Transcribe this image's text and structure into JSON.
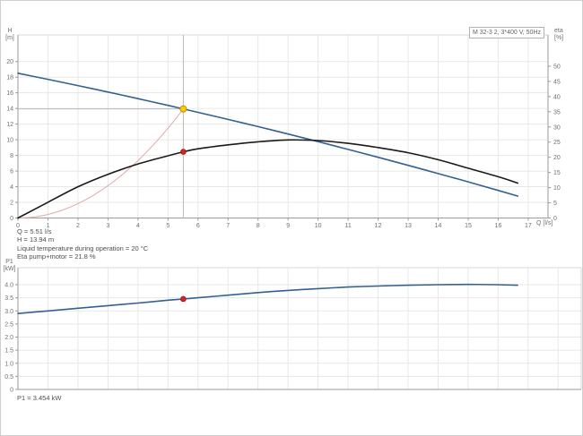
{
  "model_box": {
    "label": "M 32-3 2, 3*400 V, 50Hz"
  },
  "axis_labels": {
    "h": "H\n[m]",
    "eta": "eta\n[%]",
    "q": "Q [l/s]",
    "p1": "P1\n[kW]"
  },
  "info_panel": {
    "lines": [
      "Q = 5.51 l/s",
      "H = 13.94 m",
      "Liquid temperature during operation = 20 °C",
      "Eta pump+motor = 21.8 %"
    ]
  },
  "result_panel": {
    "p1_line": "P1 = 3.454 kW"
  },
  "colors": {
    "pump_curve": "#336190",
    "eta_curve": "#1a1a1a",
    "system_curve": "#e0aaa6",
    "p1_curve": "#336190",
    "duty_point_fill": "#ffcc00",
    "duty_point_stroke": "#cc8800",
    "value_point_fill": "#d42626",
    "value_point_stroke": "#a81818",
    "grid": "#e7e7e7",
    "axis": "#9a9a9a",
    "border": "#d9d9d9",
    "guide": "#b9b9b9",
    "tick_text": "#707070"
  },
  "chart_data": [
    {
      "type": "line",
      "title": "Pump curve, efficiency curve and system curve",
      "xlabel": "Q [l/s]",
      "ylabel_left": "H [m]",
      "ylabel_right": "eta [%]",
      "xlim": [
        0,
        17.66
      ],
      "ylim_left": [
        0,
        23.4
      ],
      "ylim_right": [
        0,
        60.3
      ],
      "x_ticks": [
        0,
        1,
        2,
        3,
        4,
        5,
        6,
        7,
        8,
        9,
        10,
        11,
        12,
        13,
        14,
        15,
        16,
        17
      ],
      "x_tick_labels": [
        "0",
        "1",
        "2",
        "3",
        "4",
        "5",
        "6",
        "7",
        "8",
        "9",
        "10",
        "11",
        "12",
        "13",
        "14",
        "15",
        "16",
        "17"
      ],
      "y_ticks_left": [
        0,
        2,
        4,
        6,
        8,
        10,
        12,
        14,
        16,
        18,
        20
      ],
      "y_tick_labels_left": [
        "0",
        "2",
        "4",
        "6",
        "8",
        "10",
        "12",
        "14",
        "16",
        "18",
        "20"
      ],
      "y_ticks_right": [
        0,
        5,
        10,
        15,
        20,
        25,
        30,
        35,
        40,
        45,
        50
      ],
      "y_tick_labels_right": [
        "0",
        "5",
        "10",
        "15",
        "20",
        "25",
        "30",
        "35",
        "40",
        "45",
        "50"
      ],
      "grid": true,
      "series": [
        {
          "name": "system-curve",
          "axis": "left",
          "color": "#e0aaa6",
          "width": 1,
          "points": [
            [
              0,
              0
            ],
            [
              0.5,
              0.11
            ],
            [
              1,
              0.46
            ],
            [
              1.5,
              1.03
            ],
            [
              2,
              1.84
            ],
            [
              2.5,
              2.87
            ],
            [
              3,
              4.13
            ],
            [
              3.5,
              5.62
            ],
            [
              4,
              7.34
            ],
            [
              4.5,
              9.3
            ],
            [
              5,
              11.48
            ],
            [
              5.51,
              13.94
            ]
          ]
        },
        {
          "name": "pump-curve",
          "axis": "left",
          "color": "#336190",
          "width": 1.6,
          "points": [
            [
              0,
              18.5
            ],
            [
              1,
              17.72
            ],
            [
              2,
              16.92
            ],
            [
              3,
              16.1
            ],
            [
              4,
              15.25
            ],
            [
              5,
              14.39
            ],
            [
              5.51,
              13.94
            ],
            [
              6,
              13.5
            ],
            [
              7,
              12.6
            ],
            [
              8,
              11.68
            ],
            [
              9,
              10.73
            ],
            [
              10,
              9.76
            ],
            [
              11,
              8.77
            ],
            [
              12,
              7.76
            ],
            [
              13,
              6.73
            ],
            [
              14,
              5.68
            ],
            [
              15,
              4.62
            ],
            [
              16,
              3.52
            ],
            [
              16.65,
              2.8
            ]
          ]
        },
        {
          "name": "eta-curve",
          "axis": "right",
          "color": "#1a1a1a",
          "width": 1.6,
          "points": [
            [
              0,
              0
            ],
            [
              1,
              5.2
            ],
            [
              2,
              10.3
            ],
            [
              3,
              14.4
            ],
            [
              4,
              17.8
            ],
            [
              5,
              20.5
            ],
            [
              5.51,
              21.8
            ],
            [
              6,
              22.8
            ],
            [
              7,
              24.1
            ],
            [
              8,
              25.1
            ],
            [
              9,
              25.7
            ],
            [
              10,
              25.5
            ],
            [
              11,
              24.6
            ],
            [
              12,
              23.2
            ],
            [
              13,
              21.5
            ],
            [
              14,
              19.2
            ],
            [
              15,
              16.4
            ],
            [
              16,
              13.6
            ],
            [
              16.65,
              11.5
            ]
          ]
        }
      ],
      "guides": {
        "vline_x": 5.51,
        "hline_y": 13.94
      },
      "markers": [
        {
          "name": "duty-point",
          "axis": "left",
          "x": 5.51,
          "y": 13.94,
          "r": 3.5,
          "fill": "#ffcc00",
          "stroke": "#cc8800"
        },
        {
          "name": "eta-value-point",
          "axis": "right",
          "x": 5.51,
          "y": 21.8,
          "r": 2.8,
          "fill": "#d42626",
          "stroke": "#a81818"
        }
      ]
    },
    {
      "type": "line",
      "title": "Power input curve",
      "xlabel": "",
      "ylabel_left": "P1 [kW]",
      "xlim": [
        0,
        18.77
      ],
      "ylim_left": [
        0,
        4.65
      ],
      "x_ticks": [],
      "x_tick_labels": [],
      "y_ticks_left": [
        0,
        0.5,
        1,
        1.5,
        2,
        2.5,
        3,
        3.5,
        4
      ],
      "y_tick_labels_left": [
        "0",
        "0.5",
        "1.0",
        "1.5",
        "2.0",
        "2.5",
        "3.0",
        "3.5",
        "4.0"
      ],
      "grid": true,
      "series": [
        {
          "name": "p1-curve",
          "axis": "left",
          "color": "#336190",
          "width": 1.6,
          "points": [
            [
              0,
              2.9
            ],
            [
              1,
              3.0
            ],
            [
              2,
              3.1
            ],
            [
              3,
              3.2
            ],
            [
              4,
              3.3
            ],
            [
              5,
              3.41
            ],
            [
              5.51,
              3.454
            ],
            [
              6,
              3.5
            ],
            [
              7,
              3.6
            ],
            [
              8,
              3.7
            ],
            [
              9,
              3.78
            ],
            [
              10,
              3.85
            ],
            [
              11,
              3.91
            ],
            [
              12,
              3.95
            ],
            [
              13,
              3.98
            ],
            [
              14,
              4.0
            ],
            [
              15,
              4.01
            ],
            [
              16,
              4.0
            ],
            [
              16.65,
              3.98
            ]
          ]
        }
      ],
      "guides": {},
      "markers": [
        {
          "name": "p1-value-point",
          "axis": "left",
          "x": 5.51,
          "y": 3.454,
          "r": 2.8,
          "fill": "#d42626",
          "stroke": "#a81818"
        }
      ]
    }
  ]
}
